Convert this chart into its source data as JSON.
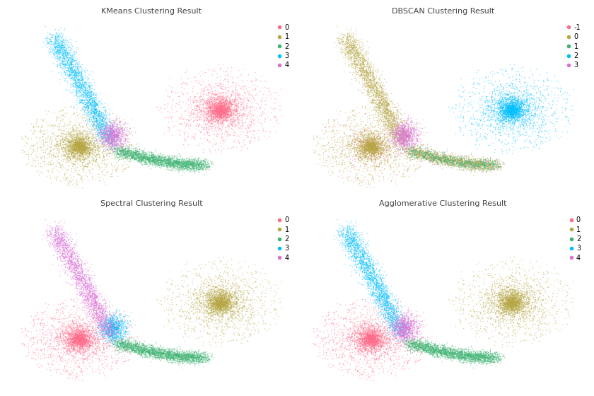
{
  "titles": [
    "KMeans Clustering Result",
    "DBSCAN Clustering Result",
    "Spectral Clustering Result",
    "Agglomerative Clustering Result"
  ],
  "colors_5": [
    "#FF6B8A",
    "#B5A642",
    "#3CB371",
    "#00BFFF",
    "#DA70D6"
  ],
  "background_color": "#ffffff",
  "n_points": 12000,
  "point_size": 1.2,
  "alpha": 0.45,
  "figsize": [
    8.4,
    5.6
  ],
  "dpi": 100,
  "title_fontsize": 8,
  "legend_fontsize": 7
}
